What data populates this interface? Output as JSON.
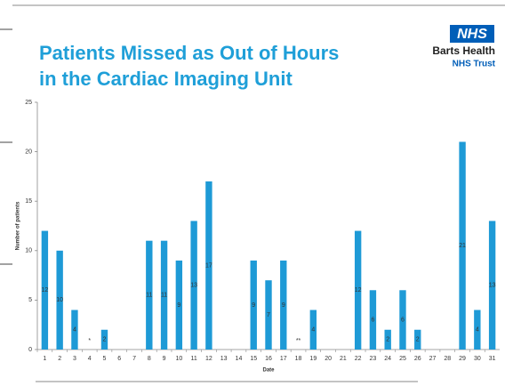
{
  "chart_data": {
    "type": "bar",
    "title_lines": [
      "Patients Missed as Out of Hours",
      "in the Cardiac Imaging Unit"
    ],
    "logo": {
      "mark": "NHS",
      "name": "Barts Health",
      "trust": "NHS Trust"
    },
    "y_label": "Number of patients",
    "x_label": "Date",
    "categories": [
      "1",
      "2",
      "3",
      "4",
      "5",
      "6",
      "7",
      "8",
      "9",
      "10",
      "11",
      "12",
      "13",
      "14",
      "15",
      "16",
      "17",
      "18",
      "19",
      "20",
      "21",
      "22",
      "23",
      "24",
      "25",
      "26",
      "27",
      "28",
      "29",
      "30",
      "31"
    ],
    "values": [
      12,
      10,
      4,
      null,
      2,
      0,
      0,
      11,
      11,
      9,
      13,
      17,
      0,
      0,
      9,
      7,
      9,
      null,
      4,
      0,
      0,
      12,
      6,
      2,
      6,
      2,
      0,
      0,
      21,
      4,
      13
    ],
    "value_labels": [
      null,
      null,
      null,
      "*",
      null,
      null,
      null,
      null,
      null,
      null,
      null,
      null,
      null,
      null,
      null,
      null,
      null,
      "**",
      null,
      null,
      null,
      null,
      null,
      null,
      null,
      null,
      null,
      null,
      null,
      null,
      null
    ],
    "color": "#1e9ad6",
    "ylim": [
      0,
      25
    ],
    "yticks": [
      0,
      5,
      10,
      15,
      20,
      25
    ]
  }
}
